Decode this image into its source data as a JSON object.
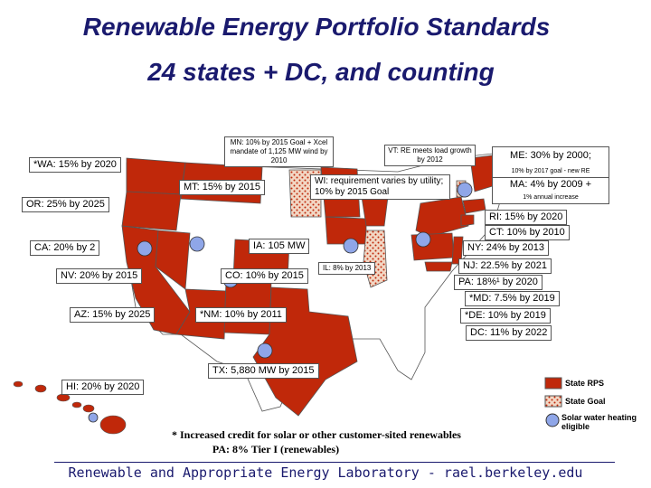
{
  "title": "Renewable Energy Portfolio Standards",
  "subtitle": "24 states + DC, and counting",
  "states": {
    "wa": "*WA: 15% by 2020",
    "or": "OR: 25% by 2025",
    "ca": "CA: 20% by 2",
    "nv": "NV: 20% by 2015",
    "az": "AZ: 15% by 2025",
    "mt": "MT: 15% by 2015",
    "co": "CO: 10% by 2015",
    "nm": "*NM: 10% by 2011",
    "tx": "TX: 5,880 MW by 2015",
    "hi": "HI: 20% by 2020",
    "mn": "MN: 10% by 2015 Goal + Xcel mandate of 1,125 MW wind by 2010",
    "ia": "IA: 105 MW",
    "il": "IL: 8% by 2013",
    "wi": "WI: requirement varies by utility; 10% by 2015 Goal",
    "vt": "VT: RE meets load growth by 2012",
    "me": "ME: 30% by 2000;",
    "me_note": "10% by 2017 goal - new RE",
    "ma": "MA: 4% by 2009 +",
    "ma_note": "1% annual increase",
    "ri": "RI: 15% by 2020",
    "ct": "CT: 10% by 2010",
    "ny": "NY: 24% by 2013",
    "nj": "NJ: 22.5% by 2021",
    "pa": "PA: 18%¹ by 2020",
    "md": "*MD: 7.5% by 2019",
    "de": "*DE: 10% by 2019",
    "dc": "DC: 11% by 2022"
  },
  "legend": {
    "rps": "State RPS",
    "goal": "State Goal",
    "solar": "Solar water heating eligible"
  },
  "footnotes": {
    "line1": "* Increased credit for solar or other customer-sited renewables",
    "line2": "PA: 8% Tier I (renewables)"
  },
  "footer": "Renewable and Appropriate Energy Laboratory - rael.berkeley.edu",
  "colors": {
    "rps": "#c0280a",
    "goal_bg": "#f2d7c4",
    "goal_dot": "#c0280a",
    "solar": "#8fa6e8",
    "other_state": "#ffffff",
    "title": "#1a1a6e"
  }
}
